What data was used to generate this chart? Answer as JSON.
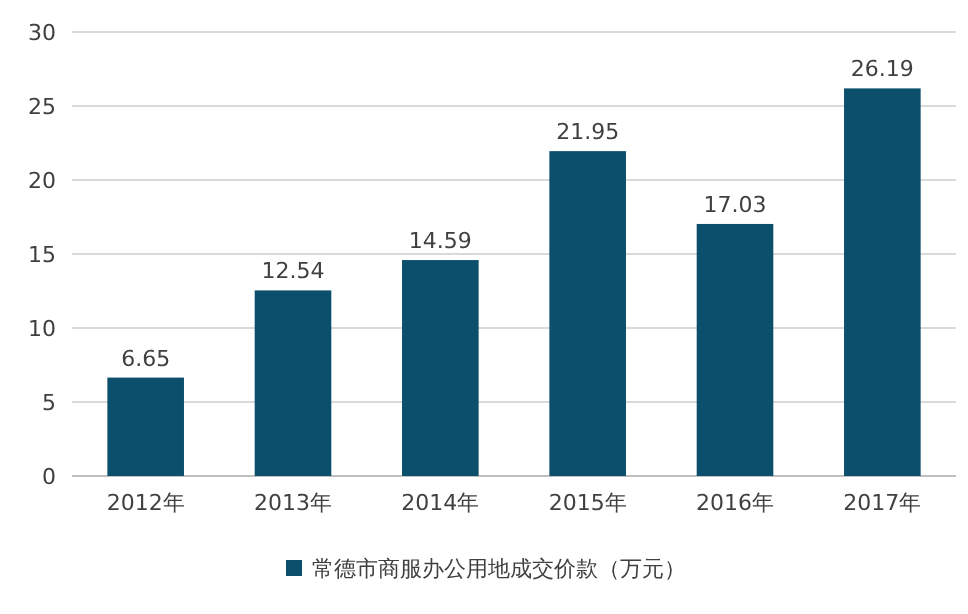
{
  "chart_data": {
    "type": "bar",
    "categories": [
      "2012年",
      "2013年",
      "2014年",
      "2015年",
      "2016年",
      "2017年"
    ],
    "series": [
      {
        "name": "常德市商服办公用地成交价款（万元）",
        "color": "#0b4f6c",
        "values": [
          6.65,
          12.54,
          14.59,
          21.95,
          17.03,
          26.19
        ]
      }
    ],
    "ylim": [
      0,
      30
    ],
    "yticks": [
      0,
      5,
      10,
      15,
      20,
      25,
      30
    ],
    "grid": "y",
    "legend": "bottom",
    "data_labels": true
  }
}
